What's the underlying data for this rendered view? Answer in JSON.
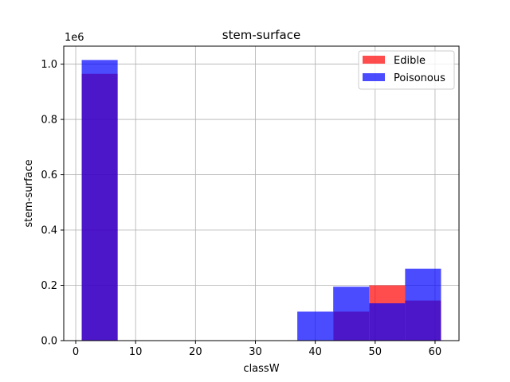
{
  "chart_data": {
    "type": "bar",
    "title": "stem-surface",
    "xlabel": "classW",
    "ylabel": "stem-surface",
    "y_offset_label": "1e6",
    "xlim": [
      -2,
      64
    ],
    "ylim": [
      0,
      1.065
    ],
    "x_ticks": [
      0,
      10,
      20,
      30,
      40,
      50,
      60
    ],
    "y_ticks": [
      0.0,
      0.2,
      0.4,
      0.6,
      0.8,
      1.0
    ],
    "grid": true,
    "legend": "top-right",
    "series": [
      {
        "name": "Edible",
        "color": "#ff0000",
        "alpha": 0.7,
        "bins": [
          {
            "x0": 1,
            "x1": 7,
            "value": 0.965
          },
          {
            "x0": 43,
            "x1": 49,
            "value": 0.105
          },
          {
            "x0": 49,
            "x1": 55,
            "value": 0.2
          },
          {
            "x0": 55,
            "x1": 61,
            "value": 0.145
          }
        ]
      },
      {
        "name": "Poisonous",
        "color": "#0000ff",
        "alpha": 0.7,
        "bins": [
          {
            "x0": 1,
            "x1": 7,
            "value": 1.015
          },
          {
            "x0": 37,
            "x1": 43,
            "value": 0.105
          },
          {
            "x0": 43,
            "x1": 49,
            "value": 0.195
          },
          {
            "x0": 49,
            "x1": 55,
            "value": 0.135
          },
          {
            "x0": 55,
            "x1": 61,
            "value": 0.26
          }
        ]
      }
    ]
  }
}
